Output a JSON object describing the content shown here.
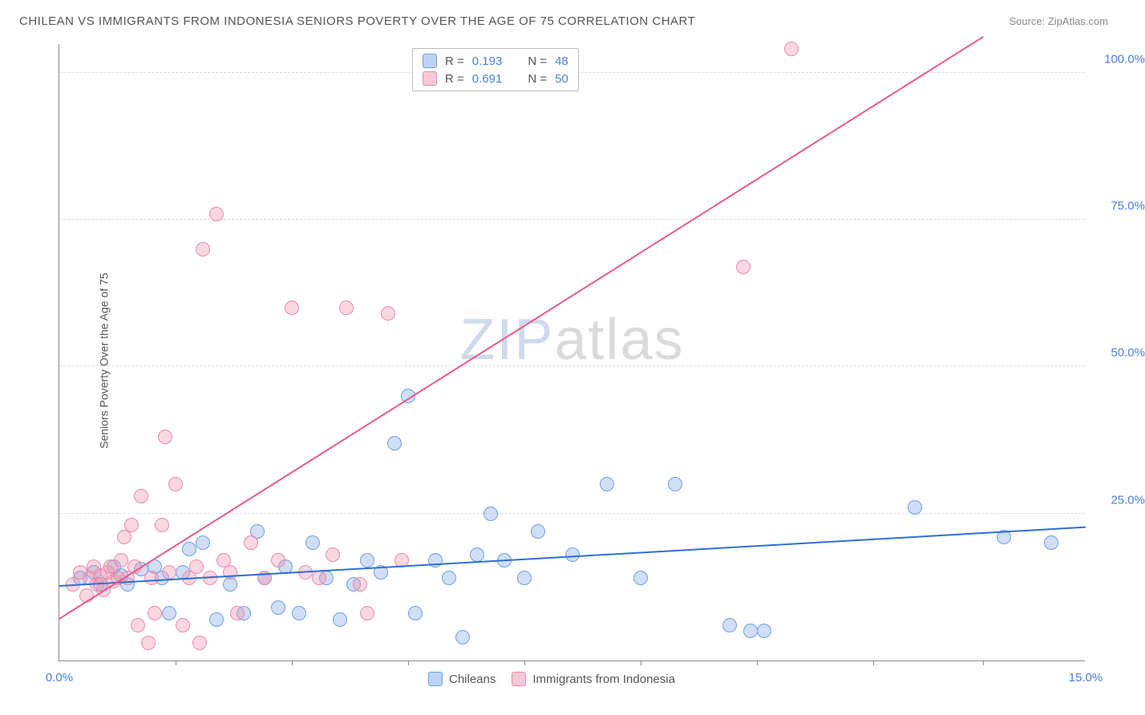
{
  "header": {
    "title": "CHILEAN VS IMMIGRANTS FROM INDONESIA SENIORS POVERTY OVER THE AGE OF 75 CORRELATION CHART",
    "source": "Source: ZipAtlas.com"
  },
  "chart": {
    "type": "scatter",
    "y_axis_label": "Seniors Poverty Over the Age of 75",
    "xlim": [
      0,
      15
    ],
    "ylim": [
      0,
      105
    ],
    "x_ticks_labeled": [
      {
        "v": 0,
        "label": "0.0%"
      },
      {
        "v": 15,
        "label": "15.0%"
      }
    ],
    "x_ticks_minor": [
      1.7,
      3.4,
      5.1,
      6.8,
      8.5,
      10.2,
      11.9,
      13.5
    ],
    "y_ticks": [
      {
        "v": 25,
        "label": "25.0%"
      },
      {
        "v": 50,
        "label": "50.0%"
      },
      {
        "v": 75,
        "label": "75.0%"
      },
      {
        "v": 100,
        "label": "100.0%"
      }
    ],
    "grid_color": "#dddddd",
    "background_color": "#ffffff",
    "series": [
      {
        "name": "Chileans",
        "color_fill": "rgba(120,160,230,0.35)",
        "color_stroke": "#6f9fe0",
        "swatch_fill": "#bcd3f5",
        "swatch_stroke": "#6f9fe0",
        "trend_color": "#2f6fd0",
        "marker_radius": 9,
        "R": "0.193",
        "N": "48",
        "trend": {
          "x1": 0,
          "y1": 12.5,
          "x2": 15,
          "y2": 22.5
        },
        "points": [
          [
            0.3,
            14
          ],
          [
            0.5,
            15
          ],
          [
            0.6,
            13
          ],
          [
            0.8,
            16
          ],
          [
            0.9,
            14.5
          ],
          [
            1.0,
            13
          ],
          [
            1.2,
            15.5
          ],
          [
            1.4,
            16
          ],
          [
            1.5,
            14
          ],
          [
            1.6,
            8
          ],
          [
            1.8,
            15
          ],
          [
            1.9,
            19
          ],
          [
            2.1,
            20
          ],
          [
            2.3,
            7
          ],
          [
            2.5,
            13
          ],
          [
            2.7,
            8
          ],
          [
            2.9,
            22
          ],
          [
            3.0,
            14
          ],
          [
            3.2,
            9
          ],
          [
            3.3,
            16
          ],
          [
            3.5,
            8
          ],
          [
            3.7,
            20
          ],
          [
            3.9,
            14
          ],
          [
            4.1,
            7
          ],
          [
            4.3,
            13
          ],
          [
            4.5,
            17
          ],
          [
            4.7,
            15
          ],
          [
            4.9,
            37
          ],
          [
            5.1,
            45
          ],
          [
            5.2,
            8
          ],
          [
            5.5,
            17
          ],
          [
            5.7,
            14
          ],
          [
            5.9,
            4
          ],
          [
            6.1,
            18
          ],
          [
            6.3,
            25
          ],
          [
            6.5,
            17
          ],
          [
            6.8,
            14
          ],
          [
            7.0,
            22
          ],
          [
            7.5,
            18
          ],
          [
            8.0,
            30
          ],
          [
            8.5,
            14
          ],
          [
            9.0,
            30
          ],
          [
            9.8,
            6
          ],
          [
            10.1,
            5
          ],
          [
            10.3,
            5
          ],
          [
            12.5,
            26
          ],
          [
            13.8,
            21
          ],
          [
            14.5,
            20
          ]
        ]
      },
      {
        "name": "Immigrants from Indonesia",
        "color_fill": "rgba(240,140,170,0.35)",
        "color_stroke": "#e88aa8",
        "swatch_fill": "#f7c8d6",
        "swatch_stroke": "#e88aa8",
        "trend_color": "#e85a8a",
        "marker_radius": 9,
        "R": "0.691",
        "N": "50",
        "trend": {
          "x1": 0,
          "y1": 7,
          "x2": 13.5,
          "y2": 106
        },
        "points": [
          [
            0.2,
            13
          ],
          [
            0.3,
            15
          ],
          [
            0.4,
            11
          ],
          [
            0.45,
            14
          ],
          [
            0.5,
            16
          ],
          [
            0.55,
            13
          ],
          [
            0.6,
            14.5
          ],
          [
            0.65,
            12
          ],
          [
            0.7,
            15
          ],
          [
            0.75,
            16
          ],
          [
            0.8,
            13.5
          ],
          [
            0.85,
            14
          ],
          [
            0.9,
            17
          ],
          [
            0.95,
            21
          ],
          [
            1.0,
            14
          ],
          [
            1.05,
            23
          ],
          [
            1.1,
            16
          ],
          [
            1.15,
            6
          ],
          [
            1.2,
            28
          ],
          [
            1.3,
            3
          ],
          [
            1.35,
            14
          ],
          [
            1.4,
            8
          ],
          [
            1.5,
            23
          ],
          [
            1.55,
            38
          ],
          [
            1.6,
            15
          ],
          [
            1.7,
            30
          ],
          [
            1.8,
            6
          ],
          [
            1.9,
            14
          ],
          [
            2.0,
            16
          ],
          [
            2.05,
            3
          ],
          [
            2.1,
            70
          ],
          [
            2.2,
            14
          ],
          [
            2.3,
            76
          ],
          [
            2.4,
            17
          ],
          [
            2.5,
            15
          ],
          [
            2.6,
            8
          ],
          [
            2.8,
            20
          ],
          [
            3.0,
            14
          ],
          [
            3.2,
            17
          ],
          [
            3.4,
            60
          ],
          [
            3.6,
            15
          ],
          [
            3.8,
            14
          ],
          [
            4.0,
            18
          ],
          [
            4.2,
            60
          ],
          [
            4.4,
            13
          ],
          [
            4.5,
            8
          ],
          [
            4.8,
            59
          ],
          [
            5.0,
            17
          ],
          [
            10.0,
            67
          ],
          [
            10.7,
            104
          ]
        ]
      }
    ],
    "bottom_legend": [
      {
        "label": "Chileans",
        "series": 0
      },
      {
        "label": "Immigrants from Indonesia",
        "series": 1
      }
    ],
    "watermark": {
      "part1": "ZIP",
      "part2": "atlas"
    }
  }
}
